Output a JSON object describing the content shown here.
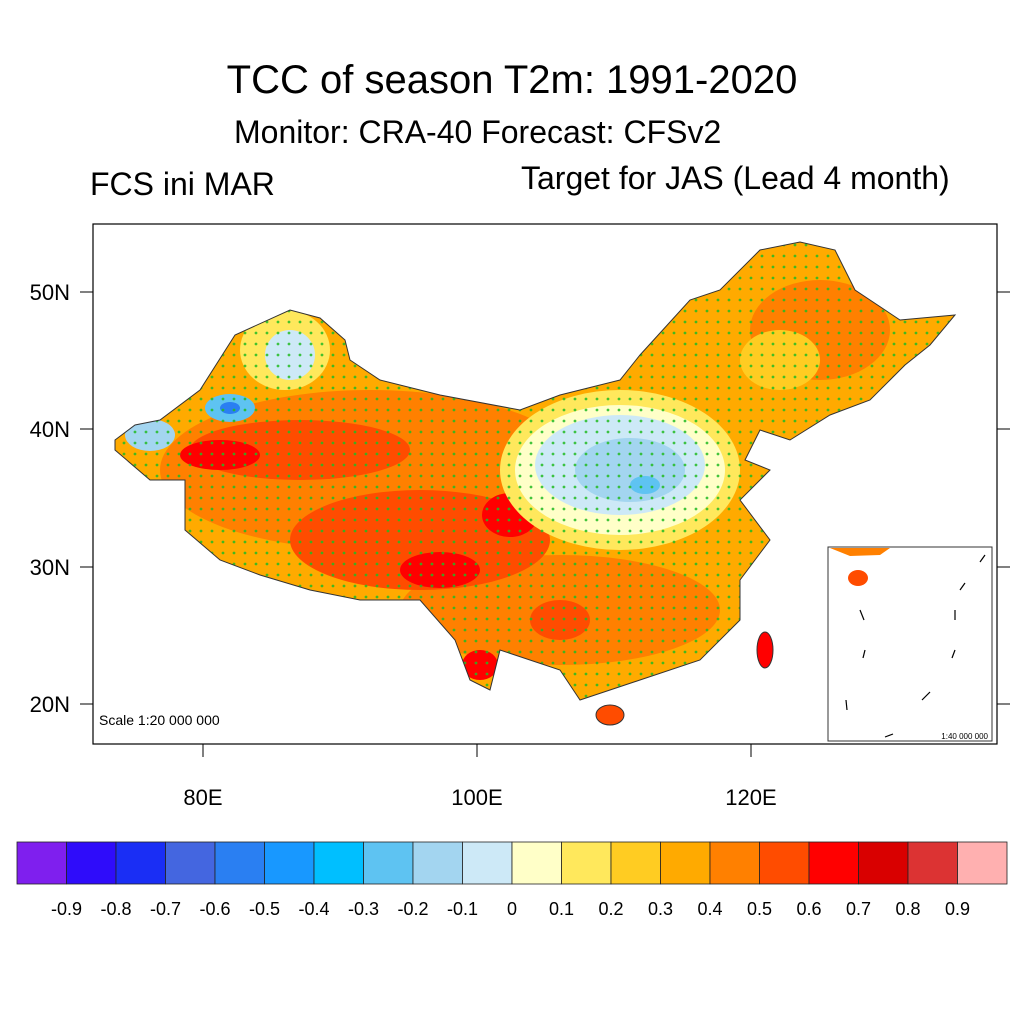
{
  "title": "TCC of season T2m: 1991-2020",
  "subtitle": "Monitor: CRA-40   Forecast: CFSv2",
  "left_label": "FCS ini MAR",
  "right_label": "Target for JAS (Lead 4 month)",
  "map": {
    "lat_labels": [
      "50N",
      "40N",
      "30N",
      "20N"
    ],
    "lon_labels": [
      "80E",
      "100E",
      "120E"
    ],
    "scale_text": "Scale 1:20 000 000",
    "inset_scale_text": "1:40 000 000",
    "significance_dot_color": "#22bb22"
  },
  "colorbar": {
    "colors": [
      "#7f1fee",
      "#2f0cfa",
      "#1a2ef5",
      "#4466e0",
      "#2a7ff2",
      "#1898ff",
      "#00bfff",
      "#5ec3f2",
      "#a3d5f0",
      "#cde9f7",
      "#ffffc8",
      "#ffe85c",
      "#ffcc22",
      "#ffaa00",
      "#ff8000",
      "#ff4c00",
      "#ff0000",
      "#d90000",
      "#dc3333",
      "#ffb0b0"
    ],
    "labels": [
      "-0.9",
      "-0.8",
      "-0.7",
      "-0.6",
      "-0.5",
      "-0.4",
      "-0.3",
      "-0.2",
      "-0.1",
      "0",
      "0.1",
      "0.2",
      "0.3",
      "0.4",
      "0.5",
      "0.6",
      "0.7",
      "0.8",
      "0.9"
    ]
  }
}
